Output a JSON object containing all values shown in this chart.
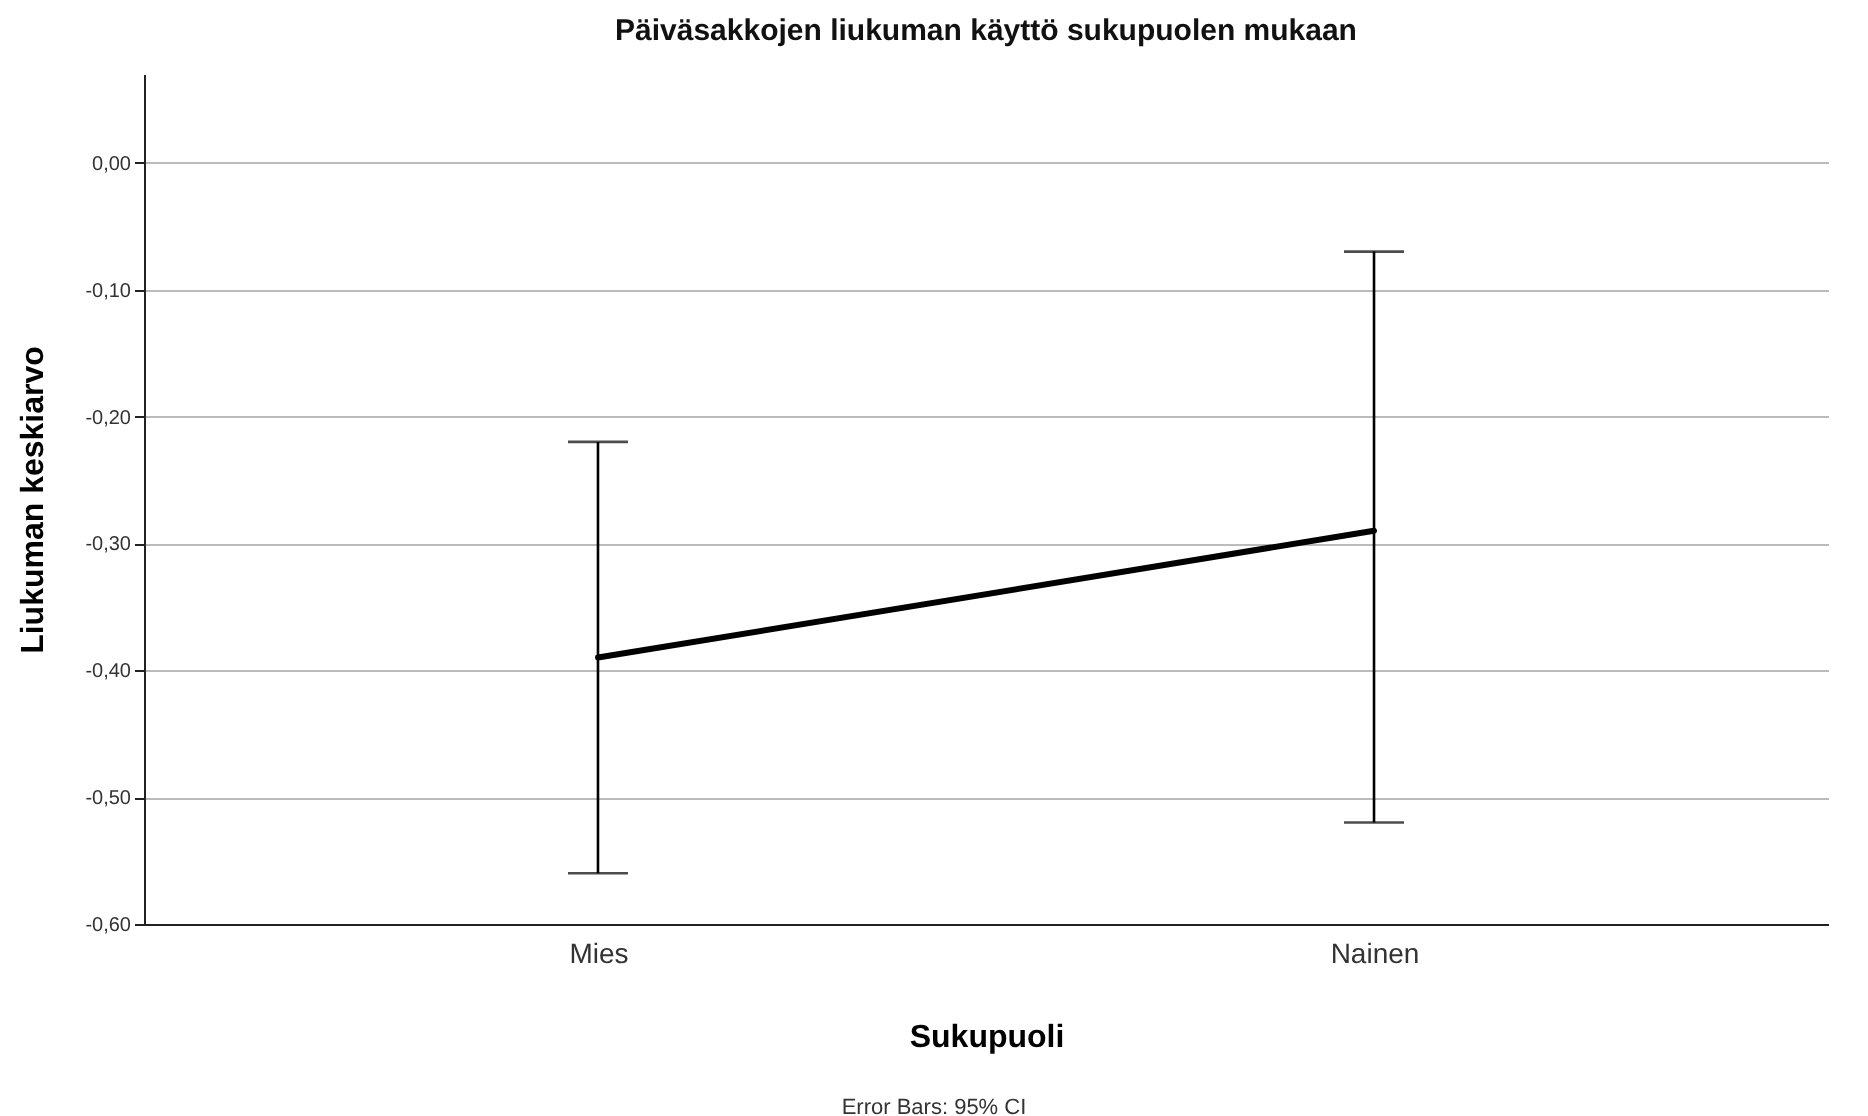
{
  "chart_data": {
    "type": "line",
    "title": "Päiväsakkojen liukuman käyttö sukupuolen mukaan",
    "xlabel": "Sukupuoli",
    "ylabel": "Liukuman keskiarvo",
    "categories": [
      "Mies",
      "Nainen"
    ],
    "series": [
      {
        "color": "#000000",
        "values": [
          -0.39,
          -0.29
        ],
        "errors": [
          [
            -0.56,
            -0.22
          ],
          [
            -0.52,
            -0.07
          ]
        ]
      }
    ],
    "ylim": [
      -0.6,
      0.07
    ],
    "yticks": [
      {
        "value": -0.6,
        "label": "-0,60"
      },
      {
        "value": -0.5,
        "label": "-0,50"
      },
      {
        "value": -0.4,
        "label": "-0,40"
      },
      {
        "value": -0.3,
        "label": "-0,30"
      },
      {
        "value": -0.2,
        "label": "-0,20"
      },
      {
        "value": -0.1,
        "label": "-0,10"
      },
      {
        "value": 0,
        "label": "0,00"
      }
    ],
    "grid": "y",
    "line_style": "solid",
    "annotations": [
      "Error Bars: 95% CI"
    ]
  }
}
